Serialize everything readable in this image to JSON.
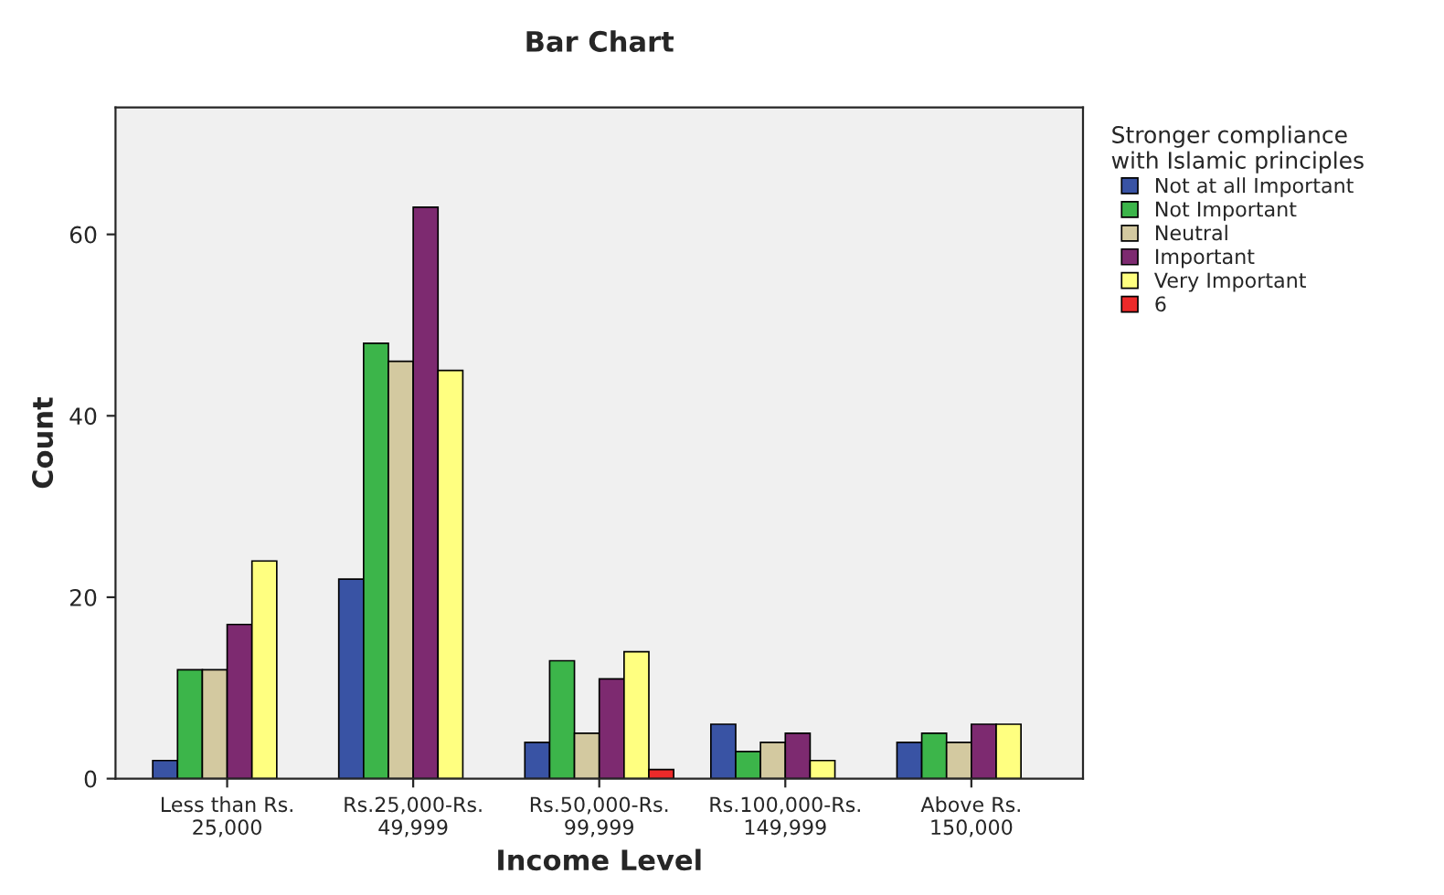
{
  "chart_data": {
    "type": "bar",
    "title": "Bar Chart",
    "xlabel": "Income Level",
    "ylabel": "Count",
    "legend_title": "Stronger compliance\nwith Islamic principles",
    "categories": [
      "Less than Rs.\n25,000",
      "Rs.25,000-Rs.\n49,999",
      "Rs.50,000-Rs.\n99,999",
      "Rs.100,000-Rs.\n149,999",
      "Above Rs.\n150,000"
    ],
    "series": [
      {
        "name": "Not at all Important",
        "color": "#3953a4",
        "values": [
          2,
          22,
          4,
          6,
          4
        ]
      },
      {
        "name": "Not Important",
        "color": "#3cb54a",
        "values": [
          12,
          48,
          13,
          3,
          5
        ]
      },
      {
        "name": "Neutral",
        "color": "#d3c9a0",
        "values": [
          12,
          46,
          5,
          4,
          4
        ]
      },
      {
        "name": "Important",
        "color": "#7d2a70",
        "values": [
          17,
          63,
          11,
          5,
          6
        ]
      },
      {
        "name": "Very Important",
        "color": "#ffff80",
        "values": [
          24,
          45,
          14,
          2,
          6
        ]
      },
      {
        "name": "6",
        "color": "#ec2a2a",
        "values": [
          null,
          null,
          1,
          null,
          null
        ]
      }
    ],
    "ylim": [
      0,
      74
    ],
    "yticks": [
      0,
      20,
      40,
      60
    ],
    "grid": false,
    "legend": "right"
  }
}
